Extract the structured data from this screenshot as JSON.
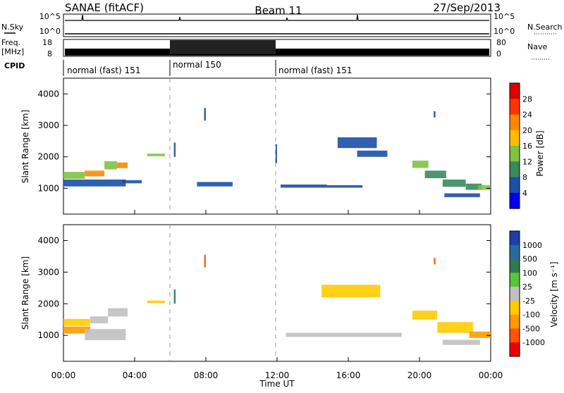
{
  "header": {
    "site": "SANAE (fitACF)",
    "beam": "Beam 11",
    "date": "27/Sep/2013"
  },
  "strips": {
    "nsky_label": "N.Sky",
    "nsky_ticks": [
      "10^5",
      "10^0"
    ],
    "nsearch_label": "N.Search",
    "nsearch_ticks": [
      "10^5",
      "10^0"
    ],
    "freq_label_1": "Freq.",
    "freq_label_2": "[MHz]",
    "freq_ticks": [
      "18",
      "8"
    ],
    "nave_label": "Nave",
    "nave_ticks": [
      "80",
      "0"
    ],
    "cpid_label": "CPID"
  },
  "cpid_segments": [
    {
      "label": "normal (fast) 151",
      "start": 0,
      "end": 6
    },
    {
      "label": "normal 150",
      "start": 6,
      "end": 12
    },
    {
      "label": "normal (fast) 151",
      "start": 12,
      "end": 24
    }
  ],
  "power_colorbar": {
    "title": "Power [dB]",
    "ticks": [
      "28",
      "24",
      "20",
      "16",
      "12",
      "8",
      "4"
    ],
    "colors": [
      "#dd0000",
      "#ff3300",
      "#ff8800",
      "#ffbb00",
      "#7fc242",
      "#3a8a5c",
      "#1c4fa8",
      "#0000ee"
    ]
  },
  "velocity_colorbar": {
    "title": "Velocity [m s⁻¹]",
    "ticks": [
      "1000",
      "500",
      "100",
      "25",
      "-25",
      "-100",
      "-500",
      "-1000"
    ],
    "colors": [
      "#1c3fa8",
      "#2a6aa0",
      "#2f7a55",
      "#5cc23a",
      "#c0c0c0",
      "#ffcc00",
      "#ff9900",
      "#ff5500",
      "#ee0000"
    ]
  },
  "x_ticks": [
    "00:00",
    "04:00",
    "08:00",
    "12:00",
    "16:00",
    "20:00",
    "00:00"
  ],
  "x_axis_title": "Time UT",
  "chart_data": [
    {
      "type": "heatmap",
      "title": "",
      "xlabel": "Time UT",
      "ylabel": "Slant Range [km]",
      "xlim": [
        0,
        24
      ],
      "ylim": [
        180,
        4500
      ],
      "y_ticks": [
        1000,
        2000,
        3000,
        4000
      ],
      "colorbar_label": "Power [dB]",
      "color_range": [
        0,
        30
      ],
      "patches": [
        {
          "x0": 0.0,
          "x1": 1.2,
          "y0": 1300,
          "y1": 1520,
          "v": 12
        },
        {
          "x0": 1.2,
          "x1": 2.3,
          "y0": 1380,
          "y1": 1560,
          "v": 20
        },
        {
          "x0": 2.3,
          "x1": 3.0,
          "y0": 1600,
          "y1": 1860,
          "v": 14
        },
        {
          "x0": 3.0,
          "x1": 3.6,
          "y0": 1640,
          "y1": 1820,
          "v": 22
        },
        {
          "x0": 0.0,
          "x1": 3.5,
          "y0": 1060,
          "y1": 1280,
          "v": 6
        },
        {
          "x0": 3.3,
          "x1": 4.4,
          "y0": 1160,
          "y1": 1260,
          "v": 5
        },
        {
          "x0": 4.7,
          "x1": 5.7,
          "y0": 2020,
          "y1": 2100,
          "v": 12
        },
        {
          "x0": 6.2,
          "x1": 6.3,
          "y0": 2000,
          "y1": 2450,
          "v": 6
        },
        {
          "x0": 7.9,
          "x1": 8.0,
          "y0": 3150,
          "y1": 3550,
          "v": 6
        },
        {
          "x0": 7.5,
          "x1": 9.5,
          "y0": 1060,
          "y1": 1200,
          "v": 5
        },
        {
          "x0": 11.9,
          "x1": 12.0,
          "y0": 1800,
          "y1": 2400,
          "v": 6
        },
        {
          "x0": 12.2,
          "x1": 14.8,
          "y0": 1020,
          "y1": 1120,
          "v": 5
        },
        {
          "x0": 14.8,
          "x1": 16.8,
          "y0": 1020,
          "y1": 1100,
          "v": 5
        },
        {
          "x0": 15.4,
          "x1": 17.6,
          "y0": 2280,
          "y1": 2620,
          "v": 7
        },
        {
          "x0": 16.5,
          "x1": 18.2,
          "y0": 2000,
          "y1": 2200,
          "v": 6
        },
        {
          "x0": 19.6,
          "x1": 20.5,
          "y0": 1650,
          "y1": 1880,
          "v": 12
        },
        {
          "x0": 20.3,
          "x1": 21.5,
          "y0": 1320,
          "y1": 1560,
          "v": 8
        },
        {
          "x0": 21.3,
          "x1": 22.6,
          "y0": 1050,
          "y1": 1280,
          "v": 9
        },
        {
          "x0": 22.6,
          "x1": 23.5,
          "y0": 950,
          "y1": 1150,
          "v": 10
        },
        {
          "x0": 23.3,
          "x1": 24.0,
          "y0": 950,
          "y1": 1100,
          "v": 12
        },
        {
          "x0": 21.4,
          "x1": 23.4,
          "y0": 720,
          "y1": 840,
          "v": 5
        },
        {
          "x0": 20.8,
          "x1": 20.9,
          "y0": 3250,
          "y1": 3450,
          "v": 6
        }
      ]
    },
    {
      "type": "heatmap",
      "title": "",
      "xlabel": "Time UT",
      "ylabel": "Slant Range [km]",
      "xlim": [
        0,
        24
      ],
      "ylim": [
        180,
        4500
      ],
      "y_ticks": [
        1000,
        2000,
        3000,
        4000
      ],
      "colorbar_label": "Velocity [m s⁻¹]",
      "color_range": [
        -1200,
        1200
      ],
      "patches": [
        {
          "x0": 0.0,
          "x1": 1.5,
          "y0": 1300,
          "y1": 1520,
          "v": -150
        },
        {
          "x0": 1.5,
          "x1": 2.5,
          "y0": 1380,
          "y1": 1600,
          "v": 80
        },
        {
          "x0": 2.5,
          "x1": 3.6,
          "y0": 1600,
          "y1": 1860,
          "v": 60
        },
        {
          "x0": 0.0,
          "x1": 1.5,
          "y0": 1060,
          "y1": 1280,
          "v": -600
        },
        {
          "x0": 1.2,
          "x1": 3.5,
          "y0": 850,
          "y1": 1200,
          "v": 0
        },
        {
          "x0": 4.7,
          "x1": 5.7,
          "y0": 2020,
          "y1": 2100,
          "v": -200
        },
        {
          "x0": 7.9,
          "x1": 8.0,
          "y0": 3150,
          "y1": 3550,
          "v": -900
        },
        {
          "x0": 6.2,
          "x1": 6.3,
          "y0": 2000,
          "y1": 2450,
          "v": 400
        },
        {
          "x0": 14.5,
          "x1": 17.8,
          "y0": 2200,
          "y1": 2600,
          "v": -200
        },
        {
          "x0": 12.5,
          "x1": 19.0,
          "y0": 950,
          "y1": 1080,
          "v": 0
        },
        {
          "x0": 19.6,
          "x1": 21.0,
          "y0": 1500,
          "y1": 1780,
          "v": -400
        },
        {
          "x0": 21.0,
          "x1": 23.0,
          "y0": 1080,
          "y1": 1420,
          "v": -300
        },
        {
          "x0": 22.8,
          "x1": 24.0,
          "y0": 920,
          "y1": 1120,
          "v": -450
        },
        {
          "x0": 21.3,
          "x1": 23.4,
          "y0": 700,
          "y1": 860,
          "v": 0
        },
        {
          "x0": 20.8,
          "x1": 20.9,
          "y0": 3250,
          "y1": 3450,
          "v": -900
        }
      ]
    }
  ]
}
